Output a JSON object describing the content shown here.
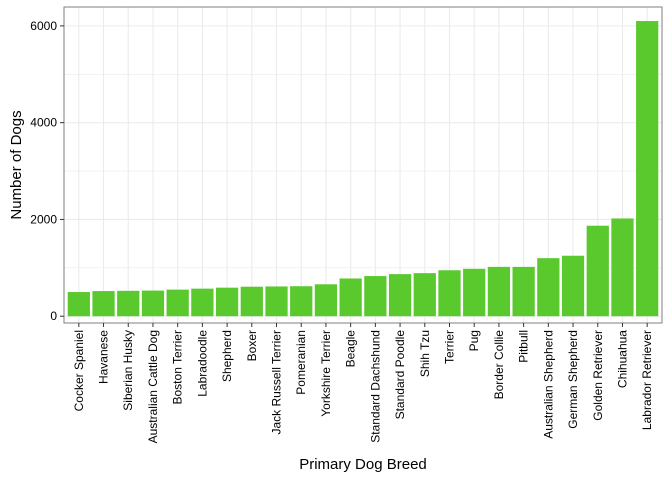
{
  "chart_data": {
    "type": "bar",
    "xlabel": "Primary Dog Breed",
    "ylabel": "Number of Dogs",
    "categories": [
      "Cocker Spaniel",
      "Havanese",
      "Siberian Husky",
      "Australian Cattle Dog",
      "Boston Terrier",
      "Labradoodle",
      "Shepherd",
      "Boxer",
      "Jack Russell Terrier",
      "Pomeranian",
      "Yorkshire Terrier",
      "Beagle",
      "Standard Dachshund",
      "Standard Poodle",
      "Shih Tzu",
      "Terrier",
      "Pug",
      "Border Collie",
      "Pitbull",
      "Australian Shepherd",
      "German Shepherd",
      "Golden Retriever",
      "Chihuahua",
      "Labrador Retriever"
    ],
    "values": [
      500,
      520,
      525,
      530,
      550,
      570,
      590,
      610,
      615,
      620,
      660,
      780,
      830,
      870,
      890,
      950,
      980,
      1020,
      1020,
      1200,
      1250,
      1870,
      2020,
      6100
    ],
    "ylim": [
      -140,
      6390
    ],
    "yticks": [
      0,
      2000,
      4000,
      6000
    ],
    "ytick_labels": [
      "0",
      "2000",
      "4000",
      "6000"
    ],
    "grid": true,
    "legend": "none",
    "colors": {
      "bar": "#5ac92e",
      "grid": "#ebebeb",
      "border": "#7f7f7f"
    }
  }
}
